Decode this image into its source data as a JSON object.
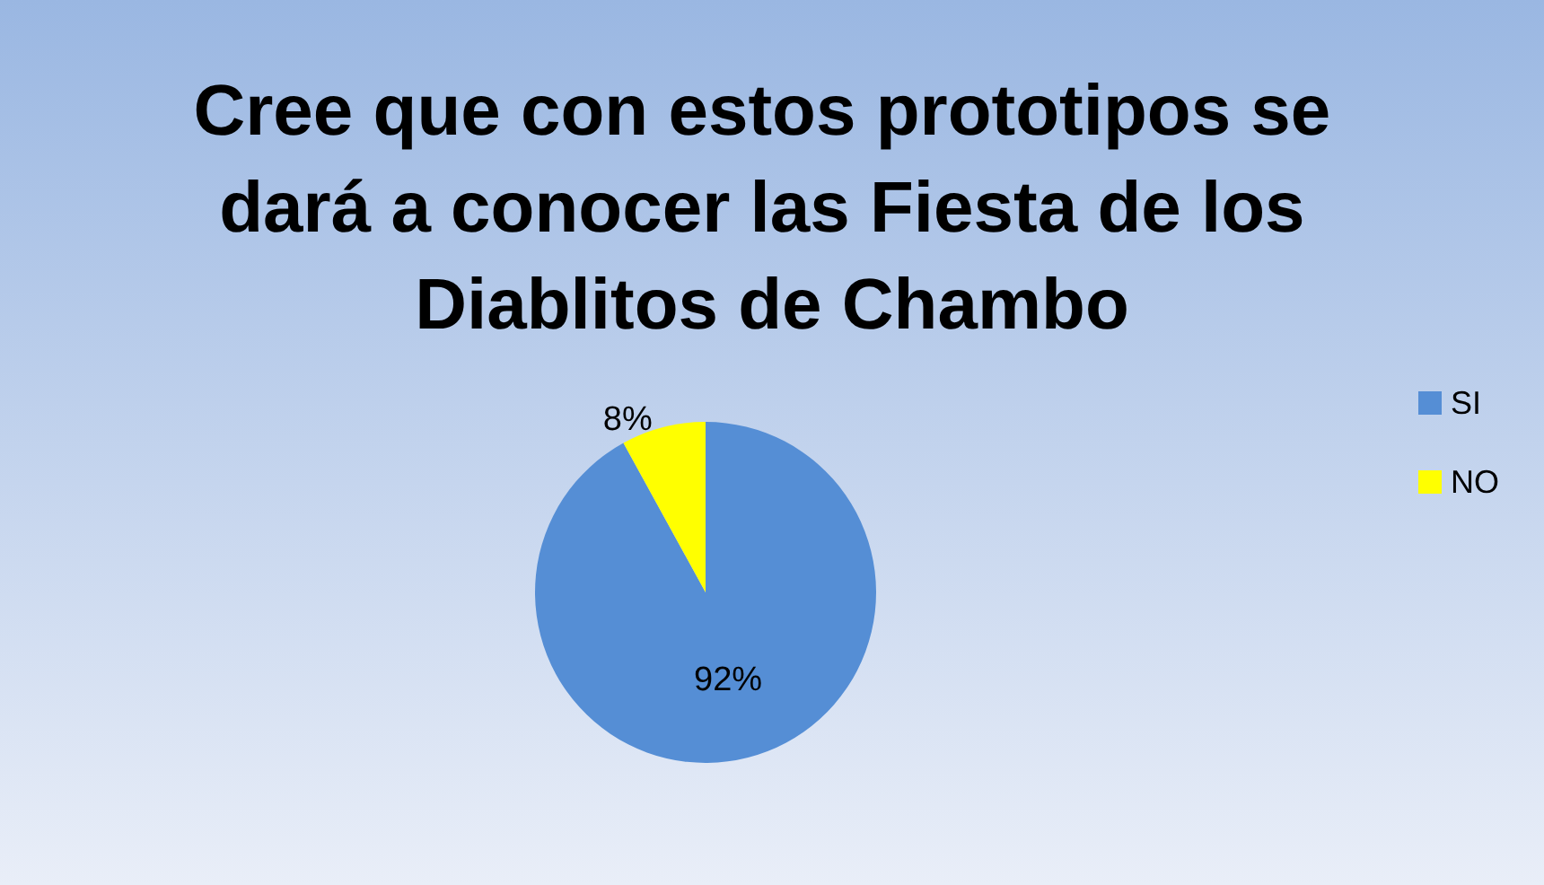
{
  "chart_data": {
    "type": "pie",
    "title": "Cree que con estos prototipos se dará a conocer las Fiesta de los Diablitos de Chambo",
    "categories": [
      "SI",
      "NO"
    ],
    "values": [
      92,
      8
    ],
    "colors": [
      "#558ed5",
      "#ffff00"
    ],
    "value_labels": [
      "92%",
      "8%"
    ],
    "legend": "right"
  }
}
